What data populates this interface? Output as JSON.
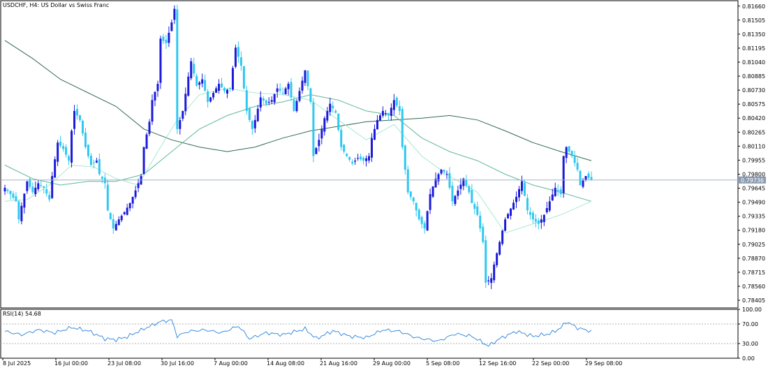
{
  "window": {
    "title": "USDCHF, H4:  US Dollar vs Swiss Franc"
  },
  "colors": {
    "background": "#ffffff",
    "frame": "#000000",
    "candle_up": "#1a1adb",
    "candle_down": "#2ec8f0",
    "ma_fast": "#a8e8d0",
    "ma_slow": "#2f6b4f",
    "ma_mid": "#5fb89a",
    "bid_line": "#9fb3c8",
    "bid_tag": "#8a9bb0",
    "rsi_line": "#3a8de0",
    "rsi_level": "#b0b0b0"
  },
  "chart_data": [
    {
      "type": "candlestick",
      "name": "price",
      "symbol": "USDCHF",
      "timeframe": "H4",
      "ylim": [
        0.7832,
        0.8172
      ],
      "y_ticks": [
        "0.81660",
        "0.81505",
        "0.81350",
        "0.81195",
        "0.81040",
        "0.80885",
        "0.80730",
        "0.80575",
        "0.80420",
        "0.80265",
        "0.80110",
        "0.79955",
        "0.79800",
        "0.79645",
        "0.79490",
        "0.79335",
        "0.79180",
        "0.79025",
        "0.78870",
        "0.78715",
        "0.78560",
        "0.78405"
      ],
      "x_ticks": [
        "8 Jul 2025",
        "16 Jul 00:00",
        "23 Jul 08:00",
        "30 Jul 16:00",
        "7 Aug 00:00",
        "14 Aug 08:00",
        "21 Aug 16:00",
        "29 Aug 00:00",
        "5 Sep 08:00",
        "12 Sep 16:00",
        "22 Sep 00:00",
        "29 Sep 08:00"
      ],
      "current_price": "0.79736",
      "current_value": 0.79736,
      "close_path": [
        [
          0,
          0.7965
        ],
        [
          2,
          0.7958
        ],
        [
          4,
          0.795
        ],
        [
          5,
          0.793
        ],
        [
          6,
          0.7945
        ],
        [
          8,
          0.7972
        ],
        [
          10,
          0.796
        ],
        [
          12,
          0.797
        ],
        [
          14,
          0.7965
        ],
        [
          16,
          0.7952
        ],
        [
          17,
          0.7978
        ],
        [
          19,
          0.8015
        ],
        [
          21,
          0.8008
        ],
        [
          23,
          0.7995
        ],
        [
          24,
          0.8028
        ],
        [
          25,
          0.805
        ],
        [
          27,
          0.804
        ],
        [
          29,
          0.801
        ],
        [
          31,
          0.799
        ],
        [
          33,
          0.7995
        ],
        [
          34,
          0.798
        ],
        [
          36,
          0.797
        ],
        [
          37,
          0.794
        ],
        [
          39,
          0.792
        ],
        [
          41,
          0.793
        ],
        [
          43,
          0.7938
        ],
        [
          45,
          0.7948
        ],
        [
          47,
          0.7962
        ],
        [
          49,
          0.7978
        ],
        [
          50,
          0.801
        ],
        [
          52,
          0.8038
        ],
        [
          53,
          0.8062
        ],
        [
          55,
          0.808
        ],
        [
          56,
          0.813
        ],
        [
          58,
          0.8125
        ],
        [
          60,
          0.8148
        ],
        [
          61,
          0.8163
        ],
        [
          62,
          0.803
        ],
        [
          64,
          0.805
        ],
        [
          66,
          0.8088
        ],
        [
          67,
          0.8105
        ],
        [
          69,
          0.8078
        ],
        [
          71,
          0.8085
        ],
        [
          73,
          0.806
        ],
        [
          75,
          0.807
        ],
        [
          77,
          0.808
        ],
        [
          79,
          0.8072
        ],
        [
          81,
          0.8075
        ],
        [
          83,
          0.812
        ],
        [
          85,
          0.81
        ],
        [
          87,
          0.805
        ],
        [
          89,
          0.803
        ],
        [
          90,
          0.804
        ],
        [
          92,
          0.8065
        ],
        [
          94,
          0.8058
        ],
        [
          96,
          0.8062
        ],
        [
          98,
          0.8075
        ],
        [
          100,
          0.807
        ],
        [
          102,
          0.808
        ],
        [
          104,
          0.805
        ],
        [
          106,
          0.8072
        ],
        [
          108,
          0.8095
        ],
        [
          110,
          0.806
        ],
        [
          111,
          0.8
        ],
        [
          113,
          0.8018
        ],
        [
          115,
          0.8042
        ],
        [
          117,
          0.8058
        ],
        [
          119,
          0.8048
        ],
        [
          121,
          0.801
        ],
        [
          123,
          0.8
        ],
        [
          125,
          0.7992
        ],
        [
          127,
          0.7998
        ],
        [
          129,
          0.7995
        ],
        [
          131,
          0.8
        ],
        [
          132,
          0.802
        ],
        [
          134,
          0.804
        ],
        [
          136,
          0.805
        ],
        [
          138,
          0.8045
        ],
        [
          140,
          0.8062
        ],
        [
          142,
          0.805
        ],
        [
          143,
          0.801
        ],
        [
          145,
          0.796
        ],
        [
          147,
          0.795
        ],
        [
          149,
          0.793
        ],
        [
          151,
          0.792
        ],
        [
          153,
          0.7958
        ],
        [
          155,
          0.7975
        ],
        [
          157,
          0.7985
        ],
        [
          159,
          0.798
        ],
        [
          161,
          0.795
        ],
        [
          163,
          0.7962
        ],
        [
          165,
          0.7975
        ],
        [
          167,
          0.796
        ],
        [
          168,
          0.7948
        ],
        [
          170,
          0.7935
        ],
        [
          172,
          0.7905
        ],
        [
          173,
          0.786
        ],
        [
          175,
          0.7865
        ],
        [
          176,
          0.788
        ],
        [
          178,
          0.7905
        ],
        [
          180,
          0.793
        ],
        [
          182,
          0.7942
        ],
        [
          184,
          0.7955
        ],
        [
          186,
          0.7972
        ],
        [
          188,
          0.794
        ],
        [
          190,
          0.793
        ],
        [
          192,
          0.7925
        ],
        [
          194,
          0.7935
        ],
        [
          196,
          0.795
        ],
        [
          198,
          0.7965
        ],
        [
          200,
          0.7958
        ],
        [
          201,
          0.8
        ],
        [
          202,
          0.801
        ],
        [
          204,
          0.8
        ],
        [
          206,
          0.7985
        ],
        [
          207,
          0.7968
        ],
        [
          209,
          0.7978
        ],
        [
          211,
          0.7974
        ]
      ],
      "ma_fast_path": [
        [
          0,
          0.795
        ],
        [
          8,
          0.7952
        ],
        [
          16,
          0.7968
        ],
        [
          24,
          0.799
        ],
        [
          32,
          0.7988
        ],
        [
          40,
          0.7975
        ],
        [
          48,
          0.7968
        ],
        [
          56,
          0.801
        ],
        [
          62,
          0.804
        ],
        [
          70,
          0.8068
        ],
        [
          80,
          0.8075
        ],
        [
          90,
          0.807
        ],
        [
          100,
          0.8068
        ],
        [
          110,
          0.8062
        ],
        [
          120,
          0.804
        ],
        [
          130,
          0.8018
        ],
        [
          140,
          0.8035
        ],
        [
          150,
          0.8
        ],
        [
          160,
          0.7978
        ],
        [
          170,
          0.796
        ],
        [
          180,
          0.7915
        ],
        [
          190,
          0.7925
        ],
        [
          200,
          0.7935
        ],
        [
          211,
          0.795
        ]
      ],
      "ma_mid_path": [
        [
          0,
          0.799
        ],
        [
          10,
          0.7975
        ],
        [
          20,
          0.7968
        ],
        [
          30,
          0.7972
        ],
        [
          40,
          0.7972
        ],
        [
          50,
          0.798
        ],
        [
          60,
          0.8005
        ],
        [
          70,
          0.803
        ],
        [
          80,
          0.8045
        ],
        [
          90,
          0.8055
        ],
        [
          100,
          0.806
        ],
        [
          110,
          0.8068
        ],
        [
          120,
          0.8062
        ],
        [
          130,
          0.805
        ],
        [
          140,
          0.8045
        ],
        [
          150,
          0.802
        ],
        [
          160,
          0.8005
        ],
        [
          170,
          0.7995
        ],
        [
          180,
          0.798
        ],
        [
          190,
          0.7968
        ],
        [
          200,
          0.796
        ],
        [
          211,
          0.795
        ]
      ],
      "ma_slow_path": [
        [
          0,
          0.8128
        ],
        [
          10,
          0.8108
        ],
        [
          20,
          0.8085
        ],
        [
          30,
          0.807
        ],
        [
          40,
          0.8055
        ],
        [
          50,
          0.803
        ],
        [
          60,
          0.8018
        ],
        [
          70,
          0.801
        ],
        [
          80,
          0.8005
        ],
        [
          90,
          0.801
        ],
        [
          100,
          0.802
        ],
        [
          110,
          0.8028
        ],
        [
          120,
          0.8033
        ],
        [
          130,
          0.8038
        ],
        [
          140,
          0.804
        ],
        [
          150,
          0.8042
        ],
        [
          160,
          0.8045
        ],
        [
          170,
          0.804
        ],
        [
          180,
          0.8028
        ],
        [
          190,
          0.8015
        ],
        [
          200,
          0.8005
        ],
        [
          211,
          0.7995
        ]
      ]
    },
    {
      "type": "line",
      "name": "RSI(14) 54.68",
      "label": "RSI(14) 54.68",
      "ylim": [
        0,
        100
      ],
      "y_ticks": [
        "100.00",
        "70.00",
        "30.00",
        "0.00"
      ],
      "levels": [
        70,
        30
      ],
      "series": [
        {
          "values": [
            [
              0,
              55
            ],
            [
              6,
              48
            ],
            [
              12,
              58
            ],
            [
              18,
              52
            ],
            [
              24,
              63
            ],
            [
              30,
              56
            ],
            [
              36,
              40
            ],
            [
              40,
              38
            ],
            [
              44,
              44
            ],
            [
              50,
              60
            ],
            [
              56,
              75
            ],
            [
              60,
              78
            ],
            [
              62,
              45
            ],
            [
              66,
              55
            ],
            [
              72,
              58
            ],
            [
              78,
              52
            ],
            [
              84,
              66
            ],
            [
              88,
              40
            ],
            [
              94,
              52
            ],
            [
              100,
              48
            ],
            [
              108,
              60
            ],
            [
              112,
              40
            ],
            [
              118,
              56
            ],
            [
              124,
              45
            ],
            [
              130,
              42
            ],
            [
              136,
              58
            ],
            [
              142,
              55
            ],
            [
              148,
              42
            ],
            [
              156,
              35
            ],
            [
              162,
              50
            ],
            [
              168,
              45
            ],
            [
              174,
              25
            ],
            [
              178,
              40
            ],
            [
              184,
              55
            ],
            [
              190,
              45
            ],
            [
              196,
              50
            ],
            [
              200,
              62
            ],
            [
              202,
              75
            ],
            [
              206,
              62
            ],
            [
              211,
              55
            ]
          ]
        }
      ]
    }
  ]
}
